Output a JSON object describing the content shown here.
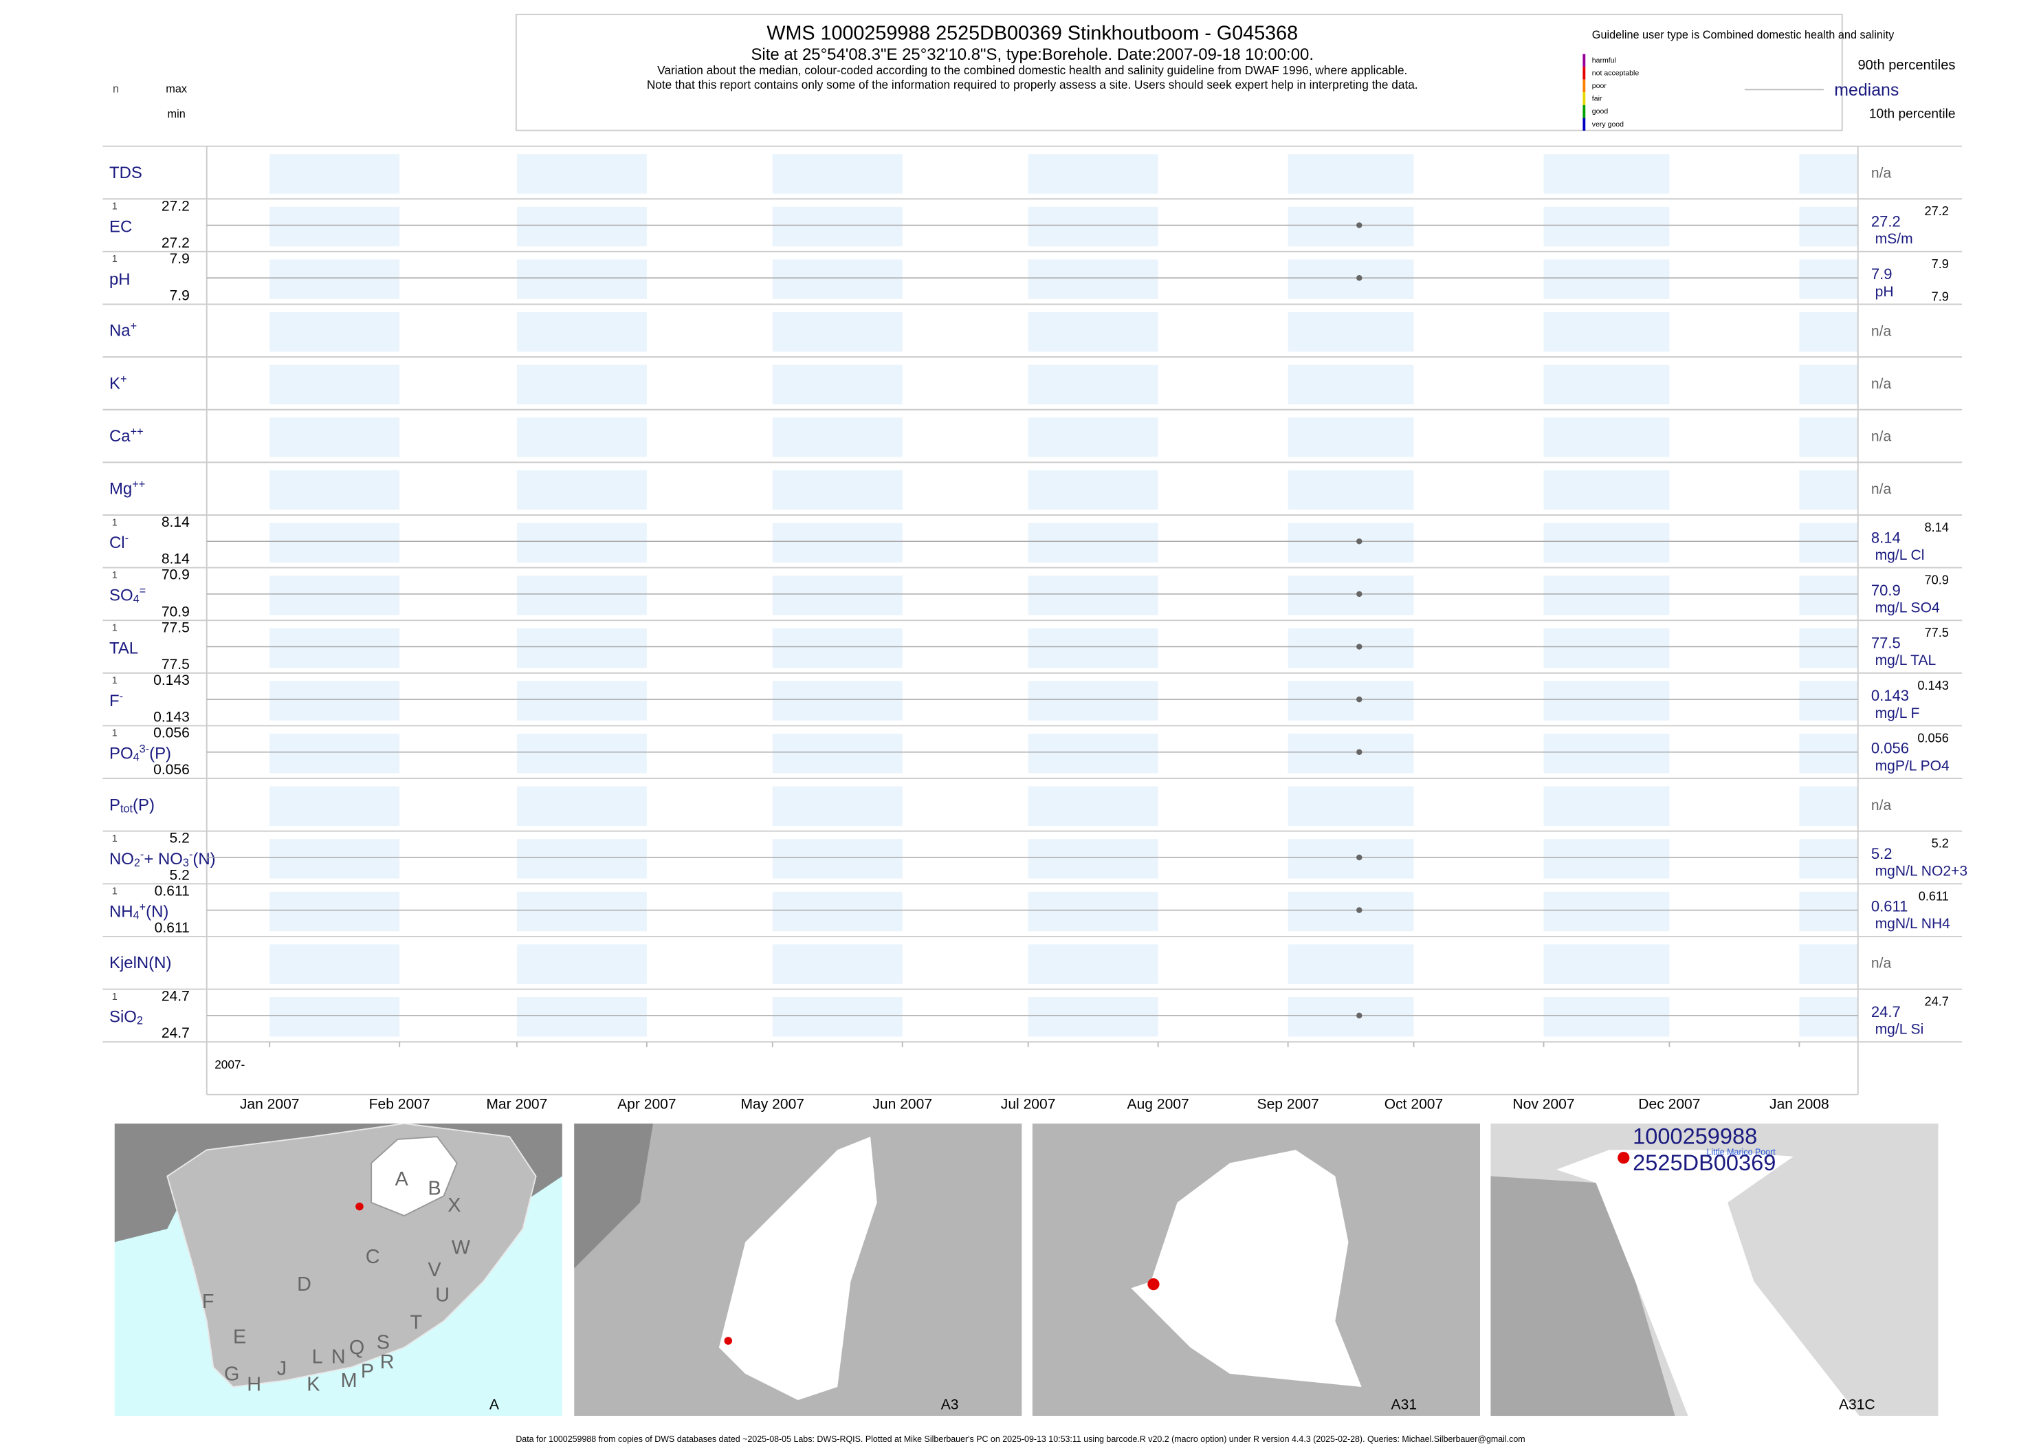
{
  "header": {
    "title": "WMS 1000259988 2525DB00369 Stinkhoutboom - G045368",
    "subtitle": "Site at 25°54'08.3\"E 25°32'10.8\"S, type:Borehole. Date:2007-09-18 10:00:00.",
    "notes": [
      "Variation about the median,  colour-coded according to the combined domestic health and salinity guideline from DWAF 1996, where applicable.",
      "Note that this report contains only some of the information required to properly assess a site. Users should seek expert help in interpreting the data."
    ]
  },
  "guideline": {
    "title": "Guideline user type is Combined domestic health and salinity",
    "classes": [
      {
        "name": "harmful",
        "color": "#990099"
      },
      {
        "name": "not acceptable",
        "color": "#e60000"
      },
      {
        "name": "poor",
        "color": "#ff8000"
      },
      {
        "name": "fair",
        "color": "#e6d800"
      },
      {
        "name": "good",
        "color": "#00a000"
      },
      {
        "name": "very good",
        "color": "#0000c0"
      }
    ],
    "p90": "90th percentiles",
    "median": "medians",
    "p10": "10th percentile"
  },
  "row_header": {
    "n": "n",
    "max": "max",
    "min": "min"
  },
  "chart_data": {
    "type": "scatter",
    "x": "2007-09-18",
    "xlim": [
      "2006-12-17",
      "2008-01-15"
    ],
    "xticks": [
      {
        "value": "2007-01-01",
        "label": "Jan 2007"
      },
      {
        "value": "2007-02-01",
        "label": "Feb 2007"
      },
      {
        "value": "2007-03-01",
        "label": "Mar 2007"
      },
      {
        "value": "2007-04-01",
        "label": "Apr 2007"
      },
      {
        "value": "2007-05-01",
        "label": "May 2007"
      },
      {
        "value": "2007-06-01",
        "label": "Jun 2007"
      },
      {
        "value": "2007-07-01",
        "label": "Jul 2007"
      },
      {
        "value": "2007-08-01",
        "label": "Aug 2007"
      },
      {
        "value": "2007-09-01",
        "label": "Sep 2007"
      },
      {
        "value": "2007-10-01",
        "label": "Oct 2007"
      },
      {
        "value": "2007-11-01",
        "label": "Nov 2007"
      },
      {
        "value": "2007-12-01",
        "label": "Dec 2007"
      },
      {
        "value": "2008-01-01",
        "label": "Jan 2008"
      }
    ],
    "year_label": "2007-",
    "band_color": "#eaf4fd",
    "point_color": "#666666",
    "rows": [
      {
        "parts": [
          {
            "text": "TDS"
          }
        ],
        "na": "n/a"
      },
      {
        "parts": [
          {
            "text": "EC"
          }
        ],
        "n": 1,
        "max": 27.2,
        "min": 27.2,
        "median": 27.2,
        "p90": 27.2,
        "unit": "mS/m"
      },
      {
        "parts": [
          {
            "text": "pH"
          }
        ],
        "n": 1,
        "max": 7.9,
        "min": 7.9,
        "median": 7.9,
        "p90": 7.9,
        "p10": 7.9,
        "unit": "pH"
      },
      {
        "parts": [
          {
            "text": "Na"
          },
          {
            "sup": "+"
          }
        ],
        "na": "n/a"
      },
      {
        "parts": [
          {
            "text": "K"
          },
          {
            "sup": "+"
          }
        ],
        "na": "n/a"
      },
      {
        "parts": [
          {
            "text": "Ca"
          },
          {
            "sup": "++"
          }
        ],
        "na": "n/a"
      },
      {
        "parts": [
          {
            "text": "Mg"
          },
          {
            "sup": "++"
          }
        ],
        "na": "n/a"
      },
      {
        "parts": [
          {
            "text": "Cl"
          },
          {
            "sup": "-"
          }
        ],
        "n": 1,
        "max": 8.14,
        "min": 8.14,
        "median": 8.14,
        "p90": 8.14,
        "unit": "mg/L Cl"
      },
      {
        "parts": [
          {
            "text": "SO"
          },
          {
            "sub": "4"
          },
          {
            "sup": "="
          }
        ],
        "n": 1,
        "max": 70.9,
        "min": 70.9,
        "median": 70.9,
        "p90": 70.9,
        "unit": "mg/L SO4"
      },
      {
        "parts": [
          {
            "text": "TAL"
          }
        ],
        "n": 1,
        "max": 77.5,
        "min": 77.5,
        "median": 77.5,
        "p90": 77.5,
        "unit": "mg/L TAL"
      },
      {
        "parts": [
          {
            "text": "F"
          },
          {
            "sup": "-"
          }
        ],
        "n": 1,
        "max": 0.143,
        "min": 0.143,
        "median": 0.143,
        "p90": 0.143,
        "unit": "mg/L F"
      },
      {
        "parts": [
          {
            "text": "PO"
          },
          {
            "sub": "4"
          },
          {
            "sup": "3-"
          },
          {
            "text": "(P)"
          }
        ],
        "n": 1,
        "max": 0.056,
        "min": 0.056,
        "median": 0.056,
        "p90": 0.056,
        "unit": "mgP/L PO4"
      },
      {
        "parts": [
          {
            "text": "P"
          },
          {
            "sub": "tot"
          },
          {
            "text": "(P)"
          }
        ],
        "na": "n/a"
      },
      {
        "parts": [
          {
            "text": "NO"
          },
          {
            "sub": "2"
          },
          {
            "sup": "-"
          },
          {
            "text": "+ NO"
          },
          {
            "sub": "3"
          },
          {
            "sup": "-"
          },
          {
            "text": "(N)"
          }
        ],
        "n": 1,
        "max": 5.2,
        "min": 5.2,
        "median": 5.2,
        "p90": 5.2,
        "unit": "mgN/L NO2+3"
      },
      {
        "parts": [
          {
            "text": "NH"
          },
          {
            "sub": "4"
          },
          {
            "sup": "+"
          },
          {
            "text": "(N)"
          }
        ],
        "n": 1,
        "max": 0.611,
        "min": 0.611,
        "median": 0.611,
        "p90": 0.611,
        "unit": "mgN/L NH4"
      },
      {
        "parts": [
          {
            "text": "KjelN(N)"
          }
        ],
        "na": "n/a"
      },
      {
        "parts": [
          {
            "text": "SiO"
          },
          {
            "sub": "2"
          }
        ],
        "n": 1,
        "max": 24.7,
        "min": 24.7,
        "median": 24.7,
        "p90": 24.7,
        "unit": "mg/L Si"
      }
    ]
  },
  "maps": [
    {
      "label": "A",
      "region_labels": [
        "A",
        "B",
        "X",
        "W",
        "C",
        "V",
        "U",
        "D",
        "T",
        "F",
        "E",
        "S",
        "R",
        "Q",
        "N",
        "L",
        "G",
        "H",
        "J",
        "K",
        "M",
        "P"
      ]
    },
    {
      "label": "A3"
    },
    {
      "label": "A31"
    },
    {
      "label": "A31C",
      "site_lines": [
        "1000259988",
        "2525DB00369"
      ],
      "place": "Little Marico Poort"
    }
  ],
  "footer": "Data for 1000259988 from copies of DWS databases dated ~2025-08-05 Labs: DWS-RQIS. Plotted at Mike Silberbauer's PC on 2025-09-13 10:53:11 using barcode.R v20.2 (macro option) under R version 4.4.3 (2025-02-28). Queries: Michael.Silberbauer@gmail.com"
}
